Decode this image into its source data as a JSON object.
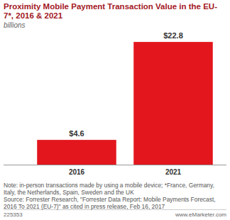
{
  "chart_data": {
    "type": "bar",
    "title": "Proximity Mobile Payment Transaction Value in the EU-7*, 2016 & 2021",
    "subtitle": "billions",
    "categories": [
      "2016",
      "2021"
    ],
    "values": [
      4.6,
      22.8
    ],
    "value_labels": [
      "$4.6",
      "$22.8"
    ],
    "data_labels": true,
    "color": "#e3161d",
    "ylim": [
      0,
      24
    ],
    "tick_labels": "x",
    "grid": false,
    "note": "Note: in-person transactions made by using a mobile device; *France, Germany, Italy, the Netherlands, Spain, Sweden and the UK",
    "source": "Source: Forrester Research, \"Forrester Data Report: Mobile Payments Forecast, 2016 To 2021 (EU-7)\" as cited in press release, Feb 16, 2017",
    "footer_id": "225353",
    "website": "www.eMarketer.com"
  }
}
